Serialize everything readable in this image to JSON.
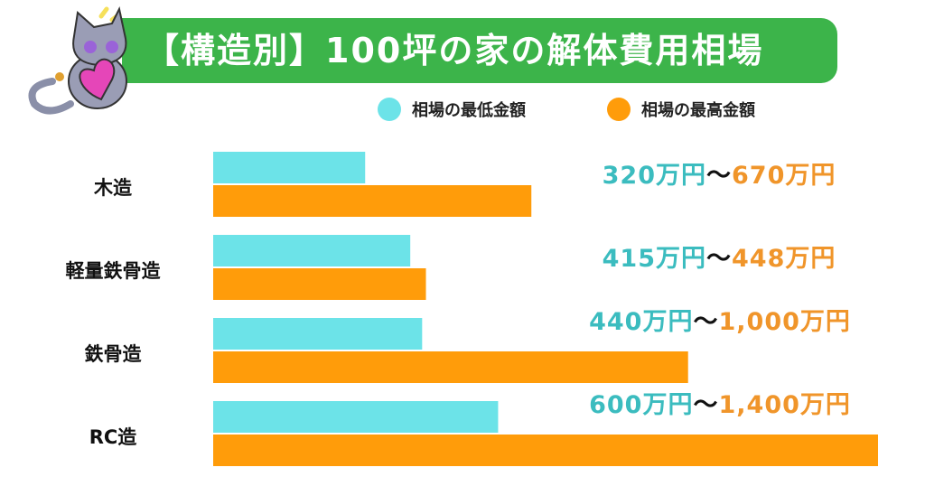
{
  "chart_data": {
    "type": "bar",
    "orientation": "horizontal",
    "title": "【構造別】100坪の家の解体費用相場",
    "categories": [
      "木造",
      "軽量鉄骨造",
      "鉄骨造",
      "RC造"
    ],
    "unit": "万円",
    "series": [
      {
        "name": "相場の最低金額",
        "color": "#6ce3e8",
        "label_color": "#3bbcbf",
        "values": [
          320,
          415,
          440,
          600
        ]
      },
      {
        "name": "相場の最高金額",
        "color": "#ff9c0a",
        "label_color": "#f0952a",
        "values": [
          670,
          448,
          1000,
          1400
        ]
      }
    ],
    "range_labels": [
      {
        "min": "320万円",
        "sep": "〜",
        "max": "670万円"
      },
      {
        "min": "415万円",
        "sep": "〜",
        "max": "448万円"
      },
      {
        "min": "440万円",
        "sep": "〜",
        "max": "1,000万円"
      },
      {
        "min": "600万円",
        "sep": "〜",
        "max": "1,400万円"
      }
    ],
    "xlim": [
      0,
      1400
    ],
    "grid": false,
    "legend_position": "top-right"
  },
  "title_bg_color": "#3cb44a",
  "mascot_icon": "cat-holding-heart"
}
